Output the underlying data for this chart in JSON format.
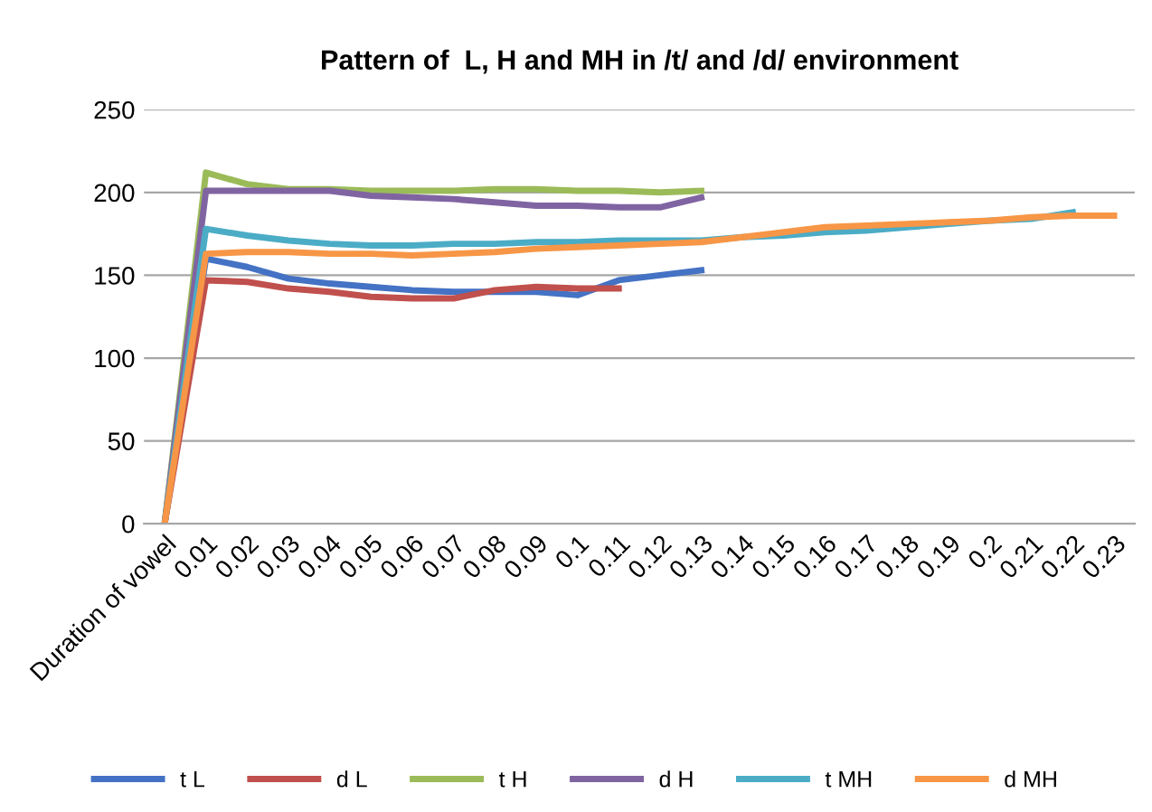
{
  "chart_data": {
    "type": "line",
    "title": "Pattern of  L, H and MH in /t/ and /d/ environment",
    "categories": [
      "Duration of vowel",
      "0.01",
      "0.02",
      "0.03",
      "0.04",
      "0.05",
      "0.06",
      "0.07",
      "0.08",
      "0.09",
      "0.1",
      "0.11",
      "0.12",
      "0.13",
      "0.14",
      "0.15",
      "0.16",
      "0.17",
      "0.18",
      "0.19",
      "0.2",
      "0.21",
      "0.22",
      "0.23"
    ],
    "series": [
      {
        "name": "t L",
        "color": "#4472c4",
        "values": [
          0,
          160,
          155,
          148,
          145,
          143,
          141,
          140,
          140,
          140,
          138,
          147,
          150,
          153,
          null,
          null,
          null,
          null,
          null,
          null,
          null,
          null,
          null,
          null
        ]
      },
      {
        "name": "d L",
        "color": "#c0504d",
        "values": [
          0,
          147,
          146,
          142,
          140,
          137,
          136,
          136,
          141,
          143,
          142,
          142,
          null,
          null,
          null,
          null,
          null,
          null,
          null,
          null,
          null,
          null,
          null,
          null
        ]
      },
      {
        "name": "t H",
        "color": "#9bbb59",
        "values": [
          0,
          212,
          205,
          202,
          202,
          201,
          201,
          201,
          202,
          202,
          201,
          201,
          200,
          201,
          null,
          null,
          null,
          null,
          null,
          null,
          null,
          null,
          null,
          null
        ]
      },
      {
        "name": "d H",
        "color": "#8064a2",
        "values": [
          0,
          201,
          201,
          201,
          201,
          198,
          197,
          196,
          194,
          192,
          192,
          191,
          191,
          197,
          null,
          null,
          null,
          null,
          null,
          null,
          null,
          null,
          null,
          null
        ]
      },
      {
        "name": "t MH",
        "color": "#4bacc6",
        "values": [
          0,
          178,
          174,
          171,
          169,
          168,
          168,
          169,
          169,
          170,
          170,
          171,
          171,
          171,
          173,
          174,
          176,
          177,
          179,
          181,
          183,
          184,
          188,
          null
        ]
      },
      {
        "name": "d MH",
        "color": "#f79646",
        "values": [
          0,
          163,
          164,
          164,
          163,
          163,
          162,
          163,
          164,
          166,
          167,
          168,
          169,
          170,
          173,
          176,
          179,
          180,
          181,
          182,
          183,
          185,
          186,
          186
        ]
      }
    ],
    "ylim": [
      0,
      250
    ],
    "yticks": [
      0,
      50,
      100,
      150,
      200,
      250
    ],
    "grid": "y",
    "legend": "bottom",
    "marker": "none",
    "line_style": "solid"
  }
}
